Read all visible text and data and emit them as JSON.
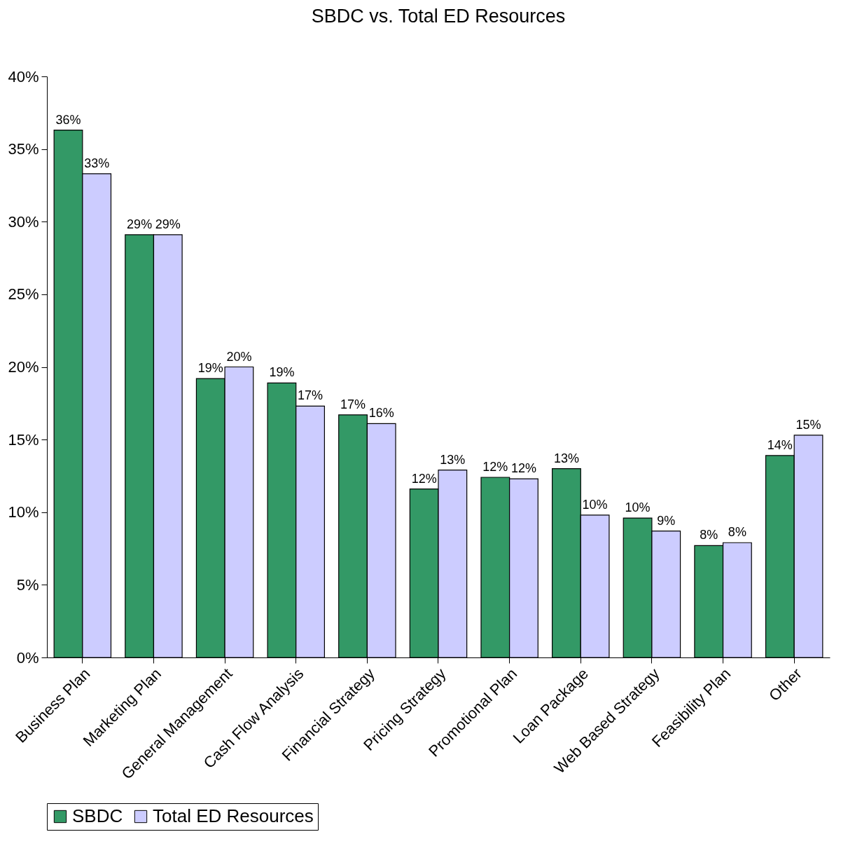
{
  "chart_data": {
    "type": "bar",
    "title": "SBDC vs. Total ED Resources",
    "categories": [
      "Business Plan",
      "Marketing Plan",
      "General Management",
      "Cash Flow Analysis",
      "Financial Strategy",
      "Pricing Strategy",
      "Promotional Plan",
      "Loan Package",
      "Web Based Strategy",
      "Feasibility Plan",
      "Other"
    ],
    "series": [
      {
        "name": "SBDC",
        "color": "#339966",
        "values": [
          36.3,
          29.1,
          19.2,
          18.9,
          16.7,
          11.6,
          12.4,
          13.0,
          9.6,
          7.7,
          13.9
        ],
        "value_labels": [
          "36%",
          "29%",
          "19%",
          "19%",
          "17%",
          "12%",
          "12%",
          "13%",
          "10%",
          "8%",
          "14%"
        ]
      },
      {
        "name": "Total ED Resources",
        "color": "#ccccff",
        "values": [
          33.3,
          29.1,
          20.0,
          17.3,
          16.1,
          12.9,
          12.3,
          9.8,
          8.7,
          7.9,
          15.3
        ],
        "value_labels": [
          "33%",
          "29%",
          "20%",
          "17%",
          "16%",
          "13%",
          "12%",
          "10%",
          "9%",
          "8%",
          "15%"
        ]
      }
    ],
    "ylim": [
      0,
      40
    ],
    "yticks": [
      {
        "value": 0,
        "label": "0%"
      },
      {
        "value": 5,
        "label": "5%"
      },
      {
        "value": 10,
        "label": "10%"
      },
      {
        "value": 15,
        "label": "15%"
      },
      {
        "value": 20,
        "label": "20%"
      },
      {
        "value": 25,
        "label": "25%"
      },
      {
        "value": 30,
        "label": "30%"
      },
      {
        "value": 35,
        "label": "35%"
      },
      {
        "value": 40,
        "label": "40%"
      }
    ],
    "grid": false,
    "legend": "bottom"
  }
}
